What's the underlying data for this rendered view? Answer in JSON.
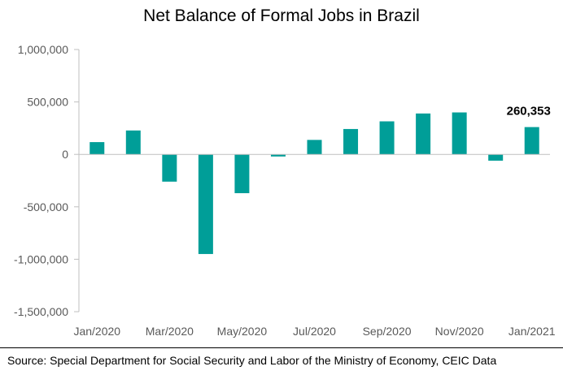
{
  "chart_data": {
    "type": "bar",
    "title": "Net Balance of Formal Jobs in Brazil",
    "xlabel": "",
    "ylabel": "",
    "ylim": [
      -1500000,
      1000000
    ],
    "ytick_values": [
      1000000,
      500000,
      0,
      -500000,
      -1000000,
      -1500000
    ],
    "ytick_labels": [
      "1,000,000",
      "500,000",
      "0",
      "-500,000",
      "-1,000,000",
      "-1,500,000"
    ],
    "categories": [
      "Jan/2020",
      "Feb/2020",
      "Mar/2020",
      "Apr/2020",
      "May/2020",
      "Jun/2020",
      "Jul/2020",
      "Aug/2020",
      "Sep/2020",
      "Oct/2020",
      "Nov/2020",
      "Dec/2020",
      "Jan/2021"
    ],
    "xtick_labels": [
      "Jan/2020",
      "Mar/2020",
      "May/2020",
      "Jul/2020",
      "Sep/2020",
      "Nov/2020",
      "Jan/2021"
    ],
    "values": [
      117000,
      228000,
      -260000,
      -950000,
      -370000,
      -20000,
      138000,
      242000,
      315000,
      390000,
      400000,
      -60000,
      260353
    ],
    "data_labels": [
      {
        "index": 12,
        "text": "260,353"
      }
    ],
    "bar_color": "#009E98",
    "grid": false,
    "legend": "none"
  },
  "source": "Source: Special Department for Social Security and Labor of the Ministry of Economy, CEIC Data"
}
